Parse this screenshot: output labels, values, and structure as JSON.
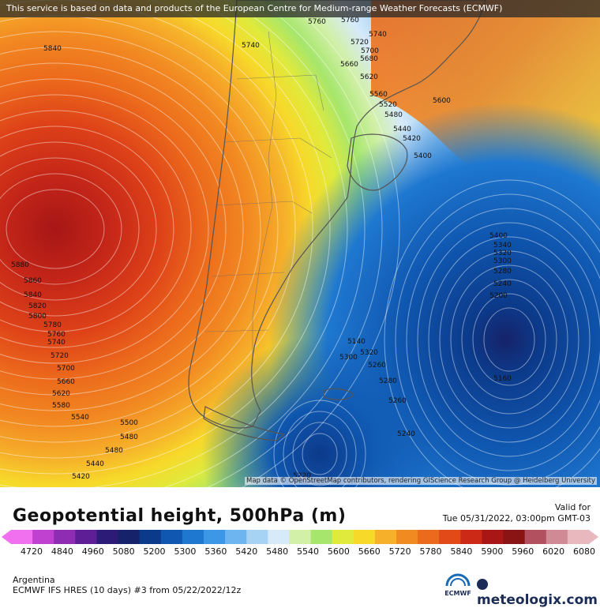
{
  "banner": "This service is based on data and products of the European Centre for Medium-range Weather Forecasts (ECMWF)",
  "attribution": "Map data © OpenStreetMap contributors, rendering GIScience Research Group @ Heidelberg University",
  "title": "Geopotential height, 500hPa (m)",
  "valid_label": "Valid for",
  "valid_time": "Tue 05/31/2022, 03:00pm GMT-03",
  "region": "Argentina",
  "model": "ECMWF IFS HRES (10 days) #3 from 05/22/2022/12z",
  "brand": "meteologix.com",
  "ecmwf_text": "ECMWF",
  "colorbar": {
    "ticks": [
      "4720",
      "4840",
      "4960",
      "5080",
      "5200",
      "5300",
      "5360",
      "5420",
      "5480",
      "5540",
      "5600",
      "5660",
      "5720",
      "5780",
      "5840",
      "5900",
      "5960",
      "6020",
      "6080"
    ],
    "colors": [
      "#f070f0",
      "#c040d0",
      "#8e2cb4",
      "#5e1f96",
      "#2c1c78",
      "#16236a",
      "#0c3a8a",
      "#0f57b0",
      "#1f78d0",
      "#3c97e6",
      "#6db5f0",
      "#a6d2f4",
      "#d6eafa",
      "#d2f0a8",
      "#a6e66c",
      "#e0ea3c",
      "#f7d92a",
      "#f6b02a",
      "#f28a22",
      "#ec6a1c",
      "#e24a18",
      "#cc2a16",
      "#a81616",
      "#8a1414",
      "#b25060",
      "#cf8a96",
      "#e9b8be"
    ]
  },
  "contour_labels": [
    "5760",
    "5760",
    "5740",
    "5720",
    "5700",
    "5680",
    "5660",
    "5620",
    "5560",
    "5520",
    "5480",
    "5440",
    "5420",
    "5400",
    "5600",
    "5740",
    "5840",
    "5880",
    "5860",
    "5840",
    "5820",
    "5800",
    "5780",
    "5760",
    "5740",
    "5720",
    "5700",
    "5660",
    "5620",
    "5580",
    "5540",
    "5500",
    "5480",
    "5480",
    "5440",
    "5420",
    "5400",
    "5340",
    "5320",
    "5300",
    "5280",
    "5240",
    "5200",
    "5160",
    "5140",
    "5320",
    "5300",
    "5260",
    "5280",
    "5260",
    "5240",
    "5220",
    "5180"
  ]
}
